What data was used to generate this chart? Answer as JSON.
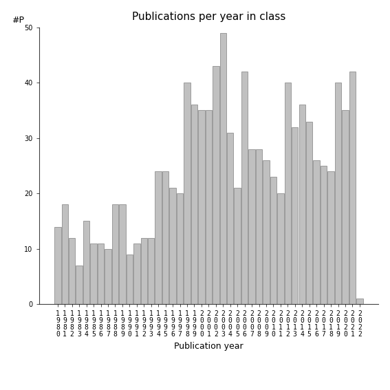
{
  "years": [
    1980,
    1981,
    1982,
    1983,
    1984,
    1985,
    1986,
    1987,
    1988,
    1989,
    1990,
    1991,
    1992,
    1993,
    1994,
    1995,
    1996,
    1997,
    1998,
    1999,
    2000,
    2001,
    2002,
    2003,
    2004,
    2005,
    2006,
    2007,
    2008,
    2009,
    2010,
    2011,
    2012,
    2013,
    2014,
    2015,
    2016,
    2017,
    2018,
    2019,
    2020,
    2021,
    2022
  ],
  "values": [
    14,
    18,
    12,
    7,
    15,
    11,
    11,
    10,
    18,
    18,
    9,
    11,
    12,
    12,
    24,
    24,
    21,
    20,
    40,
    36,
    35,
    35,
    43,
    49,
    31,
    21,
    42,
    28,
    28,
    26,
    23,
    20,
    40,
    32,
    36,
    33,
    26,
    25,
    24,
    40,
    35,
    42,
    1
  ],
  "bar_color": "#c0c0c0",
  "bar_edgecolor": "#808080",
  "title": "Publications per year in class",
  "xlabel": "Publication year",
  "ylabel_text": "#P",
  "ylim": [
    0,
    50
  ],
  "yticks": [
    0,
    10,
    20,
    30,
    40,
    50
  ],
  "title_fontsize": 11,
  "label_fontsize": 9,
  "tick_fontsize": 7,
  "ylabel_fontsize": 9,
  "bg_color": "#ffffff"
}
